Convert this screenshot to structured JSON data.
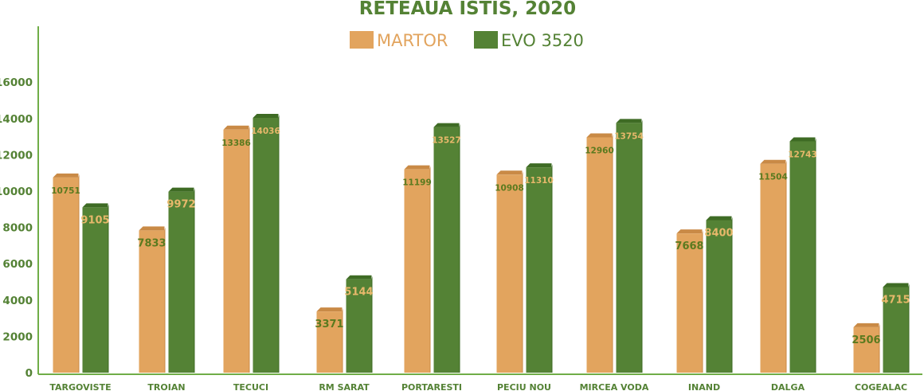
{
  "chart_data": {
    "type": "bar",
    "title": "RETEAUA ISTIS, 2020",
    "xlabel": "",
    "ylabel": "",
    "ylim": [
      0,
      18000
    ],
    "yticks": [
      0,
      2000,
      4000,
      6000,
      8000,
      10000,
      12000,
      14000,
      16000
    ],
    "grid": false,
    "legend_position": "top-center",
    "categories": [
      "TARGOVISTE",
      "TROIAN",
      "TECUCI",
      "RM SARAT",
      "PORTARESTI",
      "PECIU NOU",
      "MIRCEA VODA",
      "INAND",
      "DALGA",
      "COGEALAC"
    ],
    "series": [
      {
        "name": "MARTOR",
        "color": "#e2a45e",
        "values": [
          10751,
          7833,
          13386,
          3371,
          11199,
          10908,
          12960,
          7668,
          11504,
          2506
        ]
      },
      {
        "name": "EVO 3520",
        "color": "#548235",
        "values": [
          9105,
          9972,
          14036,
          5144,
          13527,
          11310,
          13754,
          8400,
          12743,
          4715
        ]
      }
    ]
  }
}
